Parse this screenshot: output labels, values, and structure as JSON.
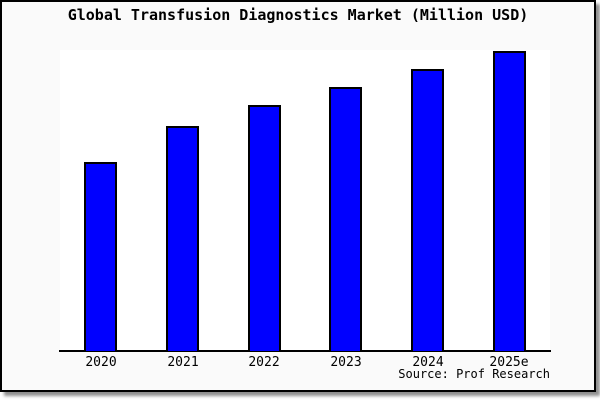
{
  "title": "Global Transfusion Diagnostics Market (Million USD)",
  "source": "Source: Prof Research",
  "colors": {
    "bar_fill": "#0000FF",
    "bar_border": "#000000",
    "plot_background": "#FFFFFF",
    "frame_background": "#FAFAFA",
    "axis": "#000000",
    "text": "#000000"
  },
  "chart_data": {
    "type": "bar",
    "title": "Global Transfusion Diagnostics Market (Million USD)",
    "categories": [
      "2020",
      "2021",
      "2022",
      "2023",
      "2024",
      "2025e"
    ],
    "values": [
      63,
      75,
      82,
      88,
      94,
      100
    ],
    "xlabel": "",
    "ylabel": "",
    "ylim": [
      0,
      100
    ],
    "y_axis_visible": false,
    "grid": false,
    "legend": "none",
    "annotation": "Source: Prof Research",
    "note": "No y-axis scale or data labels shown in the image; values are relative bar heights with the tallest bar (2025e) = 100."
  }
}
